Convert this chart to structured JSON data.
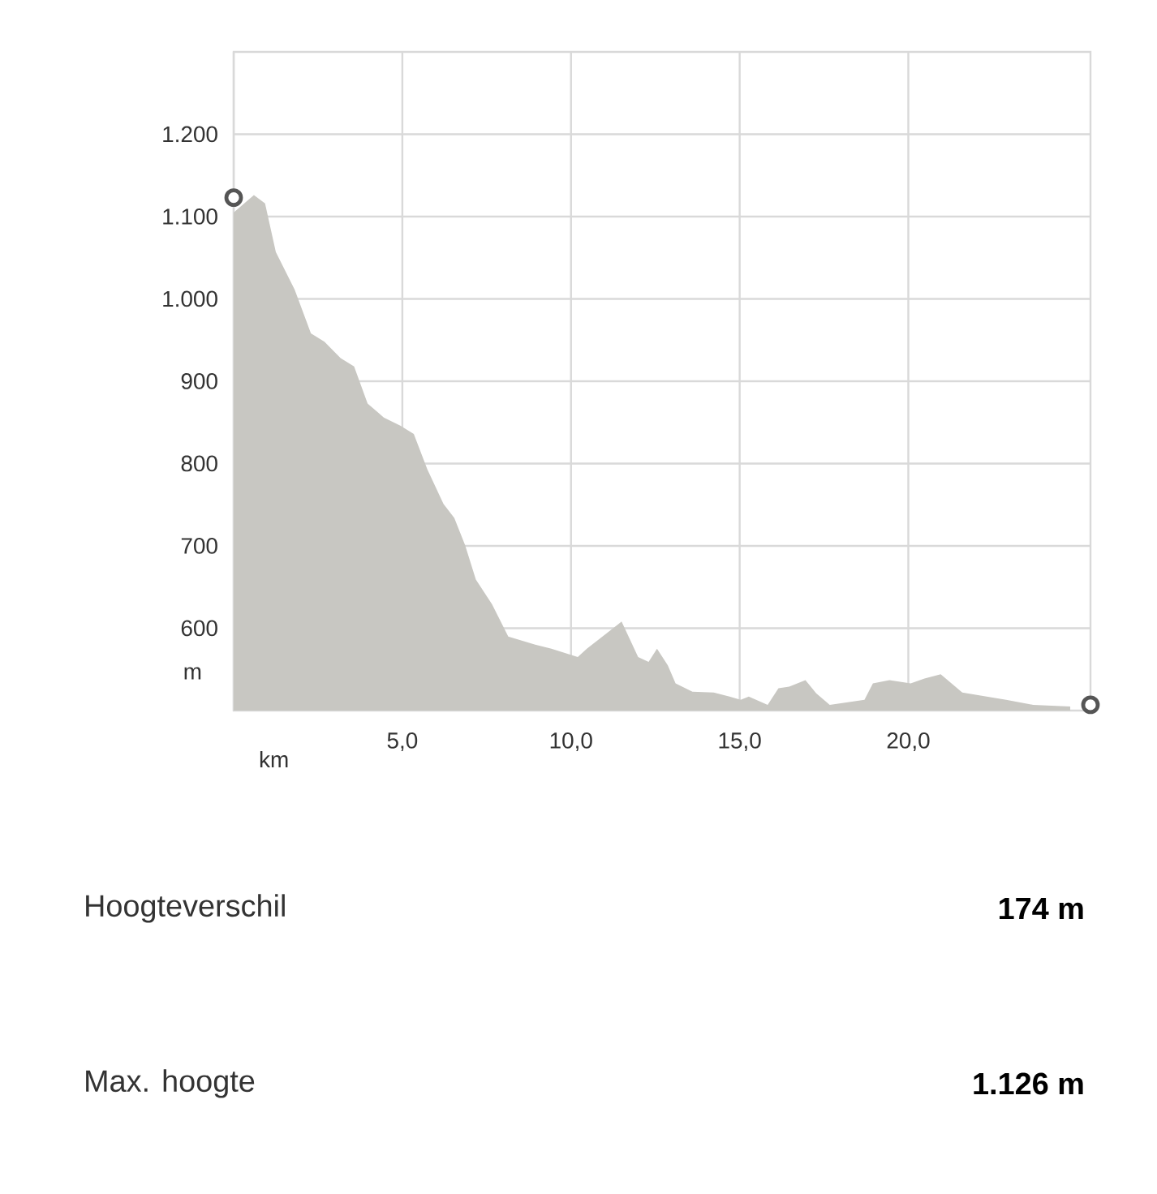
{
  "chart_data": {
    "type": "area",
    "xlabel": "km",
    "ylabel": "m",
    "xlim": [
      0,
      25.4
    ],
    "ylim": [
      500,
      1300
    ],
    "xticks": [
      {
        "value": 0,
        "label": null
      },
      {
        "value": 5,
        "label": "5,0"
      },
      {
        "value": 10,
        "label": "10,0"
      },
      {
        "value": 15,
        "label": "15,0"
      },
      {
        "value": 20,
        "label": "20,0"
      }
    ],
    "yticks": [
      600,
      700,
      800,
      900,
      {
        "value": 1000,
        "label": "1.000"
      },
      {
        "value": 1100,
        "label": "1.100"
      },
      {
        "value": 1200,
        "label": "1.200"
      }
    ],
    "grid": true,
    "series": [
      {
        "color": "#c8c7c2",
        "x": [
          0,
          0.6,
          0.93,
          1.25,
          1.81,
          2.29,
          2.69,
          3.17,
          3.57,
          3.97,
          4.45,
          4.94,
          5.34,
          5.74,
          6.22,
          6.54,
          6.86,
          7.18,
          7.66,
          8.14,
          8.94,
          9.42,
          10.2,
          10.47,
          11.5,
          11.99,
          12.3,
          12.55,
          12.87,
          13.1,
          13.6,
          14.23,
          14.7,
          15.03,
          15.27,
          15.83,
          16.15,
          16.47,
          16.95,
          17.27,
          17.67,
          18.7,
          18.95,
          19.44,
          20.07,
          20.48,
          20.96,
          21.6,
          22.9,
          23.7,
          24.8
        ],
        "values": [
          1105,
          1126,
          1116,
          1057,
          1011,
          958,
          948,
          928,
          918,
          873,
          856,
          846,
          836,
          793,
          751,
          734,
          701,
          659,
          629,
          590,
          580,
          575,
          565,
          575,
          608,
          565,
          559,
          575,
          555,
          533,
          523,
          522,
          517,
          513,
          517,
          507,
          527,
          529,
          537,
          521,
          507,
          513,
          533,
          537,
          533,
          539,
          544,
          522,
          513,
          507,
          505
        ]
      },
      {
        "type": "scatter",
        "color": "#555555",
        "marker": "circle",
        "x": [
          0,
          25.4
        ],
        "values": [
          1123,
          507
        ]
      }
    ],
    "annotations": [
      "Hoogteverschil",
      "174 m",
      "Max. hoogte",
      "1.126 m"
    ]
  }
}
